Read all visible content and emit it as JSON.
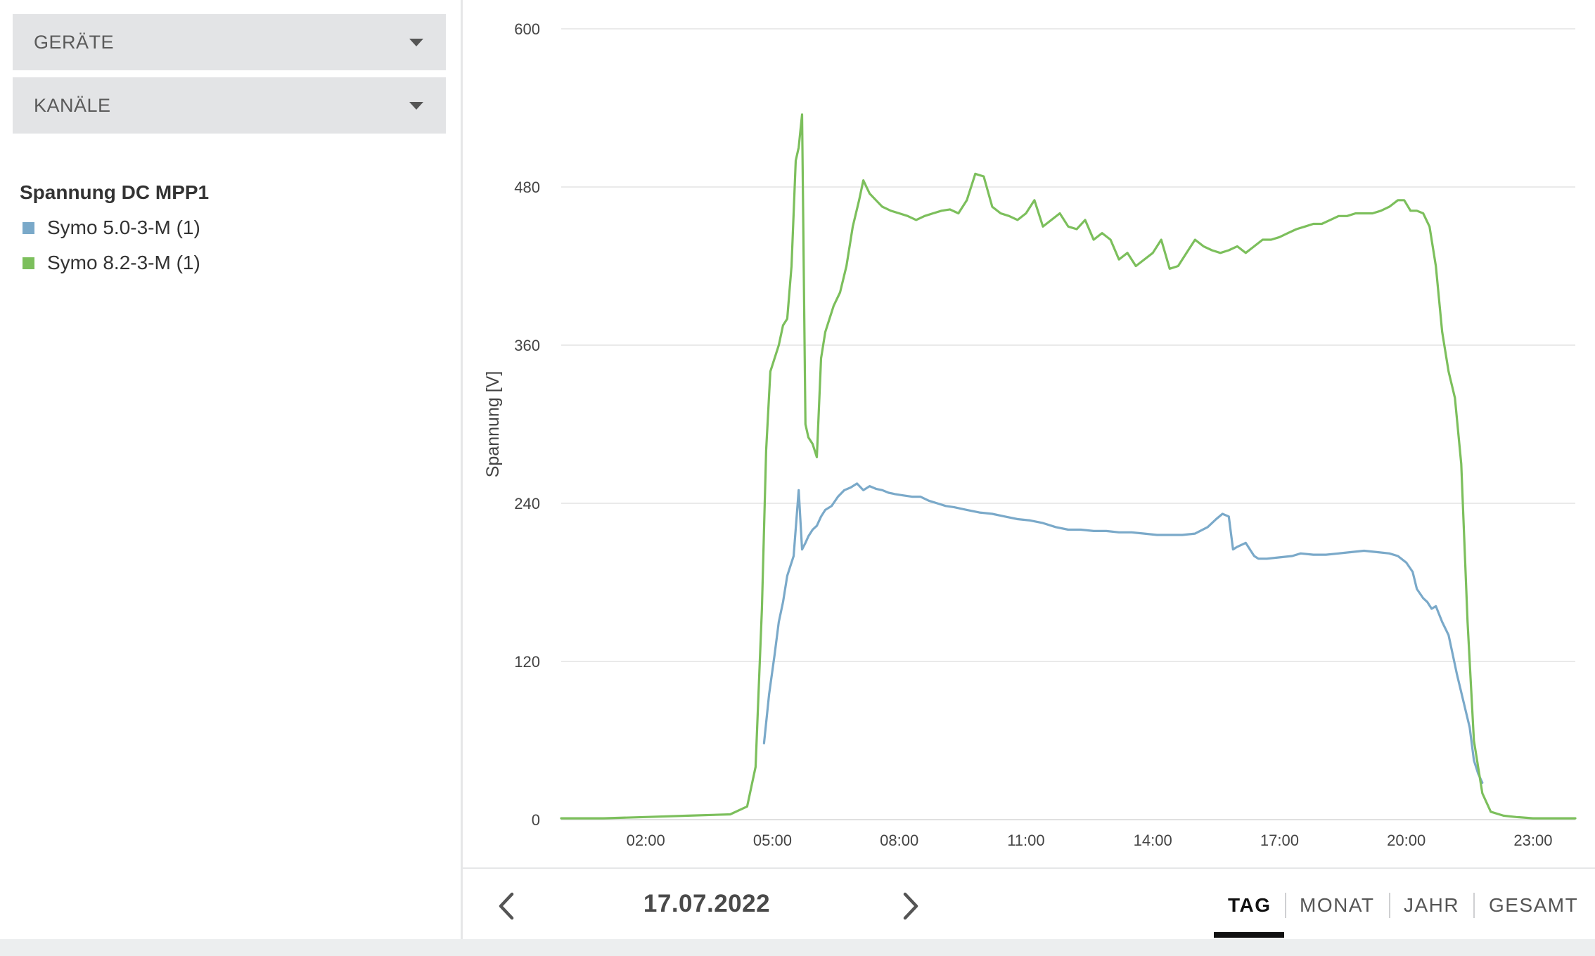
{
  "sidebar": {
    "devices_label": "GERÄTE",
    "channels_label": "KANÄLE",
    "legend_title": "Spannung DC MPP1",
    "legend_items": [
      {
        "label": "Symo 5.0-3-M (1)",
        "color": "#7aa9c9"
      },
      {
        "label": "Symo 8.2-3-M (1)",
        "color": "#7cbf5c"
      }
    ]
  },
  "chart_data": {
    "type": "line",
    "ylabel": "Spannung [V]",
    "ylim": [
      0,
      600
    ],
    "yticks": [
      "0",
      "120",
      "240",
      "360",
      "480",
      "600"
    ],
    "xlim": [
      0,
      24
    ],
    "xticks": [
      {
        "label": "02:00",
        "h": 2
      },
      {
        "label": "05:00",
        "h": 5
      },
      {
        "label": "08:00",
        "h": 8
      },
      {
        "label": "11:00",
        "h": 11
      },
      {
        "label": "14:00",
        "h": 14
      },
      {
        "label": "17:00",
        "h": 17
      },
      {
        "label": "20:00",
        "h": 20
      },
      {
        "label": "23:00",
        "h": 23
      }
    ],
    "grid": true,
    "series": [
      {
        "name": "Symo 5.0-3-M (1)",
        "color": "#7aa9c9",
        "x": [
          4.8,
          4.92,
          5.05,
          5.15,
          5.25,
          5.35,
          5.5,
          5.62,
          5.7,
          5.78,
          5.85,
          5.95,
          6.05,
          6.15,
          6.25,
          6.4,
          6.55,
          6.7,
          6.85,
          7.0,
          7.15,
          7.3,
          7.45,
          7.6,
          7.75,
          7.9,
          8.1,
          8.3,
          8.5,
          8.7,
          8.9,
          9.1,
          9.3,
          9.6,
          9.9,
          10.2,
          10.5,
          10.8,
          11.1,
          11.4,
          11.7,
          12.0,
          12.3,
          12.6,
          12.9,
          13.2,
          13.5,
          13.8,
          14.1,
          14.4,
          14.7,
          15.0,
          15.3,
          15.5,
          15.65,
          15.8,
          15.9,
          16.0,
          16.2,
          16.4,
          16.5,
          16.7,
          17.0,
          17.3,
          17.5,
          17.8,
          18.1,
          18.4,
          18.7,
          19.0,
          19.3,
          19.6,
          19.8,
          20.0,
          20.15,
          20.25,
          20.4,
          20.5,
          20.6,
          20.7,
          20.85,
          21.0,
          21.1,
          21.2,
          21.35,
          21.5,
          21.6,
          21.7,
          21.8
        ],
        "y": [
          58,
          95,
          125,
          150,
          165,
          185,
          200,
          250,
          205,
          210,
          215,
          220,
          223,
          230,
          235,
          238,
          245,
          250,
          252,
          255,
          250,
          253,
          251,
          250,
          248,
          247,
          246,
          245,
          245,
          242,
          240,
          238,
          237,
          235,
          233,
          232,
          230,
          228,
          227,
          225,
          222,
          220,
          220,
          219,
          219,
          218,
          218,
          217,
          216,
          216,
          216,
          217,
          222,
          228,
          232,
          230,
          205,
          207,
          210,
          200,
          198,
          198,
          199,
          200,
          202,
          201,
          201,
          202,
          203,
          204,
          203,
          202,
          200,
          195,
          188,
          175,
          168,
          165,
          160,
          162,
          150,
          140,
          125,
          110,
          90,
          70,
          45,
          35,
          28
        ]
      },
      {
        "name": "Symo 8.2-3-M (1)",
        "color": "#7cbf5c",
        "x": [
          0.0,
          1.0,
          2.0,
          3.0,
          4.0,
          4.4,
          4.6,
          4.75,
          4.85,
          4.95,
          5.05,
          5.15,
          5.25,
          5.35,
          5.45,
          5.55,
          5.62,
          5.7,
          5.78,
          5.85,
          5.95,
          6.05,
          6.15,
          6.25,
          6.35,
          6.45,
          6.6,
          6.75,
          6.9,
          7.05,
          7.15,
          7.3,
          7.45,
          7.6,
          7.8,
          8.0,
          8.2,
          8.4,
          8.6,
          8.8,
          9.0,
          9.2,
          9.4,
          9.6,
          9.8,
          10.0,
          10.2,
          10.4,
          10.6,
          10.8,
          11.0,
          11.2,
          11.4,
          11.6,
          11.8,
          12.0,
          12.2,
          12.4,
          12.6,
          12.8,
          13.0,
          13.2,
          13.4,
          13.6,
          13.8,
          14.0,
          14.2,
          14.4,
          14.6,
          14.8,
          15.0,
          15.2,
          15.4,
          15.6,
          15.8,
          16.0,
          16.2,
          16.4,
          16.6,
          16.8,
          17.0,
          17.2,
          17.4,
          17.6,
          17.8,
          18.0,
          18.2,
          18.4,
          18.6,
          18.8,
          19.0,
          19.2,
          19.4,
          19.6,
          19.8,
          19.95,
          20.1,
          20.25,
          20.4,
          20.55,
          20.7,
          20.85,
          21.0,
          21.15,
          21.3,
          21.45,
          21.6,
          21.8,
          22.0,
          22.3,
          22.6,
          23.0,
          24.0
        ],
        "y": [
          1,
          1,
          2,
          3,
          4,
          10,
          40,
          160,
          280,
          340,
          350,
          360,
          375,
          380,
          420,
          500,
          510,
          535,
          300,
          290,
          285,
          275,
          350,
          370,
          380,
          390,
          400,
          420,
          450,
          470,
          485,
          475,
          470,
          465,
          462,
          460,
          458,
          455,
          458,
          460,
          462,
          463,
          460,
          470,
          490,
          488,
          465,
          460,
          458,
          455,
          460,
          470,
          450,
          455,
          460,
          450,
          448,
          455,
          440,
          445,
          440,
          425,
          430,
          420,
          425,
          430,
          440,
          418,
          420,
          430,
          440,
          435,
          432,
          430,
          432,
          435,
          430,
          435,
          440,
          440,
          442,
          445,
          448,
          450,
          452,
          452,
          455,
          458,
          458,
          460,
          460,
          460,
          462,
          465,
          470,
          470,
          462,
          462,
          460,
          450,
          420,
          370,
          340,
          320,
          270,
          150,
          60,
          20,
          6,
          3,
          2,
          1,
          1
        ]
      }
    ]
  },
  "nav": {
    "date": "17.07.2022",
    "tabs": [
      {
        "label": "TAG",
        "active": true
      },
      {
        "label": "MONAT",
        "active": false
      },
      {
        "label": "JAHR",
        "active": false
      },
      {
        "label": "GESAMT",
        "active": false
      }
    ]
  }
}
